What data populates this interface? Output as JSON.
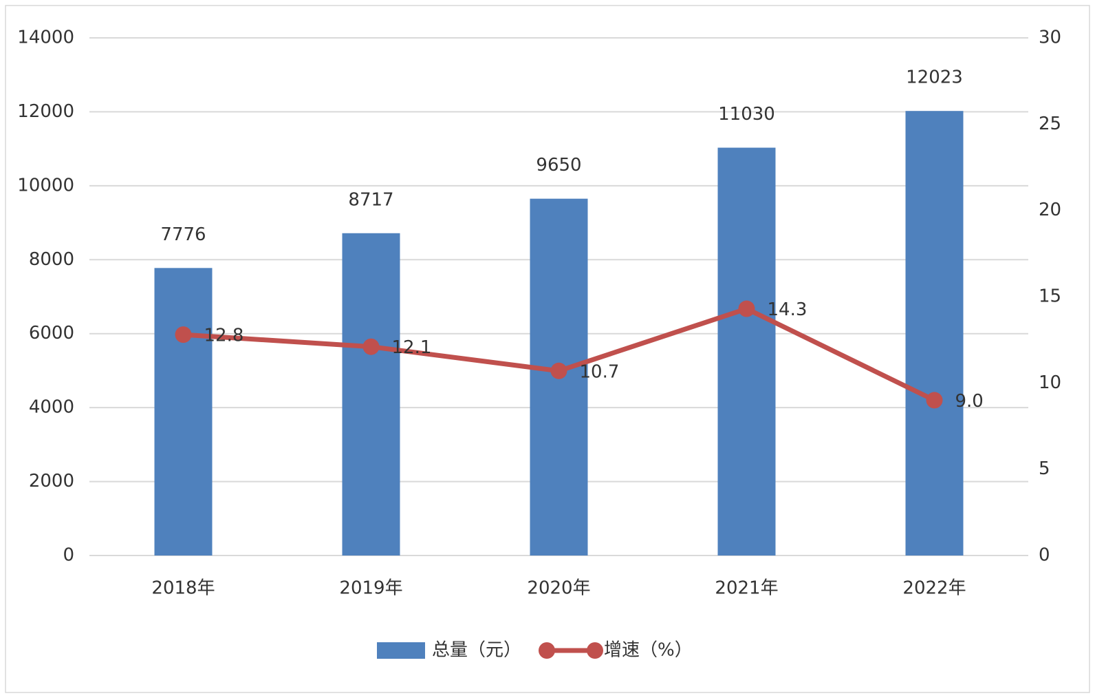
{
  "chart_data": {
    "type": "combo",
    "categories": [
      "2018年",
      "2019年",
      "2020年",
      "2021年",
      "2022年"
    ],
    "series": [
      {
        "name": "总量（元）",
        "type": "bar",
        "color": "#4f81bd",
        "values": [
          7776,
          8717,
          9650,
          11030,
          12023
        ]
      },
      {
        "name": "增速（%）",
        "type": "line",
        "axis": "y2",
        "color": "#c0504d",
        "values": [
          12.8,
          12.1,
          10.7,
          14.3,
          9.0
        ],
        "value_labels": [
          "12.8",
          "12.1",
          "10.7",
          "14.3",
          "9.0"
        ]
      }
    ],
    "ylim": [
      0,
      14000
    ],
    "yticks": [
      0,
      2000,
      4000,
      6000,
      8000,
      10000,
      12000,
      14000
    ],
    "y2lim": [
      0,
      30
    ],
    "y2ticks": [
      0,
      5,
      10,
      15,
      20,
      25,
      30
    ],
    "grid": true,
    "legend": "bottom"
  }
}
